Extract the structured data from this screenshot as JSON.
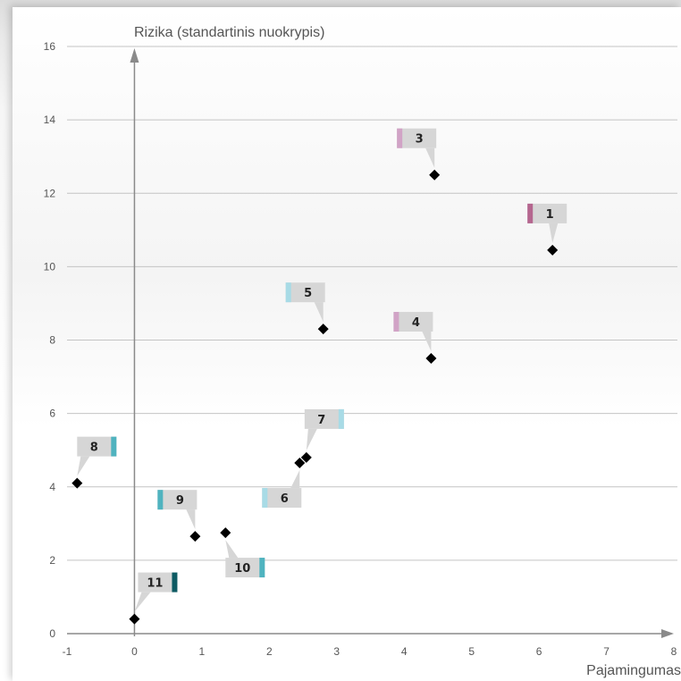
{
  "chart_data": {
    "type": "scatter",
    "title": "",
    "ylabel": "Rizika (standartinis nuokrypis)",
    "xlabel": "Pajamingumas",
    "xlim": [
      -1,
      8
    ],
    "ylim": [
      0,
      16
    ],
    "x_ticks": [
      "-1",
      "0",
      "1",
      "2",
      "3",
      "4",
      "5",
      "6",
      "7",
      "8"
    ],
    "y_ticks": [
      "0",
      "2",
      "4",
      "6",
      "8",
      "10",
      "12",
      "14",
      "16"
    ],
    "grid": "horizontal",
    "points": [
      {
        "label": "1",
        "x": 6.2,
        "y": 10.45,
        "color": "#b5668f"
      },
      {
        "label": "3",
        "x": 4.45,
        "y": 12.5,
        "color": "#d1a3c6"
      },
      {
        "label": "4",
        "x": 4.4,
        "y": 7.5,
        "color": "#d1a3c6"
      },
      {
        "label": "5",
        "x": 2.8,
        "y": 8.3,
        "color": "#a8dbe6"
      },
      {
        "label": "7",
        "x": 2.55,
        "y": 4.8,
        "color": "#a8dbe6"
      },
      {
        "label": "6",
        "x": 2.45,
        "y": 4.65,
        "color": "#a8dbe6"
      },
      {
        "label": "8",
        "x": -0.85,
        "y": 4.1,
        "color": "#4fb3bf"
      },
      {
        "label": "9",
        "x": 0.9,
        "y": 2.65,
        "color": "#4fb3bf"
      },
      {
        "label": "10",
        "x": 1.35,
        "y": 2.75,
        "color": "#4fb3bf"
      },
      {
        "label": "11",
        "x": 0.0,
        "y": 0.4,
        "color": "#0e5b63"
      }
    ]
  }
}
